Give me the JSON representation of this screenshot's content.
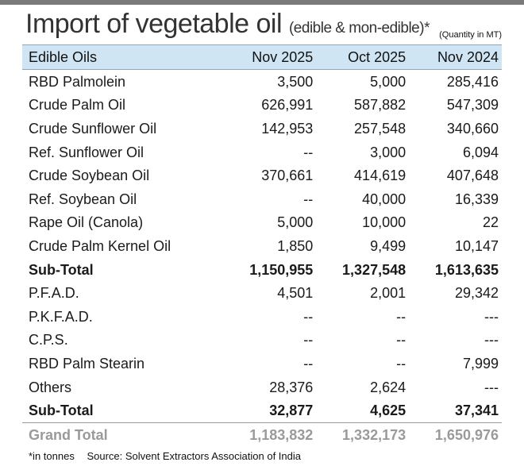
{
  "title": {
    "main": "Import of vegetable oil",
    "sub": "(edible & mon-edible)*",
    "unit_note": "(Quantity in MT)"
  },
  "columns": [
    "Edible Oils",
    "Nov 2025",
    "Oct 2025",
    "Nov 2024"
  ],
  "rows": [
    {
      "label": "RBD Palmolein",
      "nov2025": "3,500",
      "oct2025": "5,000",
      "nov2024": "285,416"
    },
    {
      "label": "Crude Palm Oil",
      "nov2025": "626,991",
      "oct2025": "587,882",
      "nov2024": "547,309"
    },
    {
      "label": "Crude Sunflower Oil",
      "nov2025": "142,953",
      "oct2025": "257,548",
      "nov2024": "340,660"
    },
    {
      "label": "Ref. Sunflower Oil",
      "nov2025": "--",
      "oct2025": "3,000",
      "nov2024": "6,094"
    },
    {
      "label": "Crude Soybean Oil",
      "nov2025": "370,661",
      "oct2025": "414,619",
      "nov2024": "407,648"
    },
    {
      "label": "Ref. Soybean Oil",
      "nov2025": "--",
      "oct2025": "40,000",
      "nov2024": "16,339"
    },
    {
      "label": "Rape Oil (Canola)",
      "nov2025": "5,000",
      "oct2025": "10,000",
      "nov2024": "22"
    },
    {
      "label": "Crude Palm Kernel Oil",
      "nov2025": "1,850",
      "oct2025": "9,499",
      "nov2024": "10,147"
    },
    {
      "label": "Sub-Total",
      "nov2025": "1,150,955",
      "oct2025": "1,327,548",
      "nov2024": "1,613,635"
    },
    {
      "label": "P.F.A.D.",
      "nov2025": "4,501",
      "oct2025": "2,001",
      "nov2024": "29,342"
    },
    {
      "label": "P.K.F.A.D.",
      "nov2025": "--",
      "oct2025": "--",
      "nov2024": "---"
    },
    {
      "label": "C.P.S.",
      "nov2025": "--",
      "oct2025": "--",
      "nov2024": "---"
    },
    {
      "label": "RBD Palm Stearin",
      "nov2025": "--",
      "oct2025": "--",
      "nov2024": "7,999"
    },
    {
      "label": "Others",
      "nov2025": "28,376",
      "oct2025": "2,624",
      "nov2024": "---"
    },
    {
      "label": "Sub-Total",
      "nov2025": "32,877",
      "oct2025": "4,625",
      "nov2024": "37,341"
    },
    {
      "label": "Grand Total",
      "nov2025": "1,183,832",
      "oct2025": "1,332,173",
      "nov2024": "1,650,976"
    }
  ],
  "footnote": {
    "unit": "*in tonnes",
    "source": "Source: Solvent Extractors Association of India"
  },
  "colors": {
    "header_bg": "#cfe5f3",
    "top_bar": "#7a7a7a",
    "grand_total_text": "#9a9a9a"
  }
}
